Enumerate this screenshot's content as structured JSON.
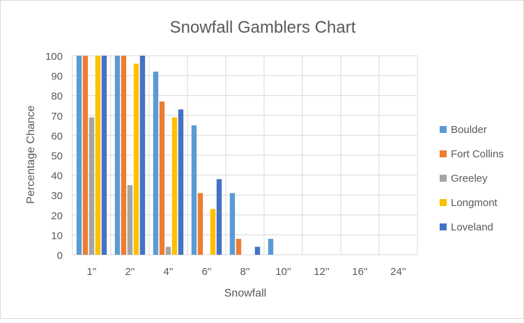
{
  "chart_data": {
    "type": "bar",
    "title": "Snowfall Gamblers Chart",
    "xlabel": "Snowfall",
    "ylabel": "Percentage Chance",
    "ylim": [
      0,
      100
    ],
    "yticks": [
      0,
      10,
      20,
      30,
      40,
      50,
      60,
      70,
      80,
      90,
      100
    ],
    "grid": true,
    "legend_position": "right",
    "categories": [
      "1''",
      "2''",
      "4''",
      "6''",
      "8''",
      "10''",
      "12''",
      "16''",
      "24''"
    ],
    "series": [
      {
        "name": "Boulder",
        "color": "#5b9bd5",
        "values": [
          100,
          100,
          92,
          65,
          31,
          8,
          0,
          0,
          0
        ]
      },
      {
        "name": "Fort Collins",
        "color": "#ed7d31",
        "values": [
          100,
          100,
          77,
          31,
          8,
          0,
          0,
          0,
          0
        ]
      },
      {
        "name": "Greeley",
        "color": "#a5a5a5",
        "values": [
          69,
          35,
          4,
          0,
          0,
          0,
          0,
          0,
          0
        ]
      },
      {
        "name": "Longmont",
        "color": "#ffc000",
        "values": [
          100,
          96,
          69,
          23,
          0,
          0,
          0,
          0,
          0
        ]
      },
      {
        "name": "Loveland",
        "color": "#4472c4",
        "values": [
          100,
          100,
          73,
          38,
          4,
          0,
          0,
          0,
          0
        ]
      }
    ]
  }
}
